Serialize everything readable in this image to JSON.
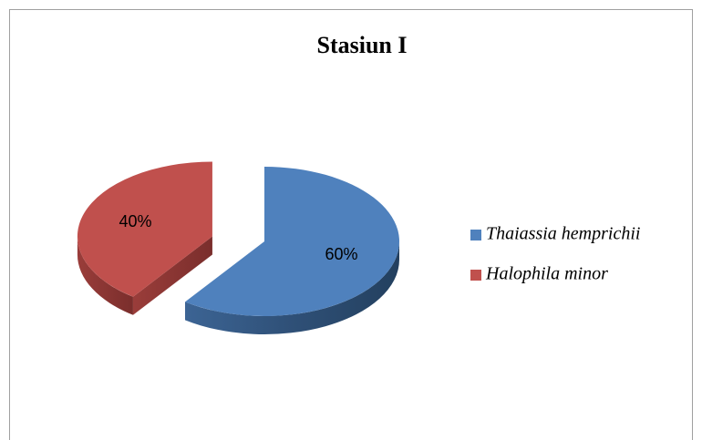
{
  "chart_data": {
    "type": "pie",
    "title": "Stasiun I",
    "categories": [
      "Thaiassia hemprichii",
      "Halophila minor"
    ],
    "values": [
      60,
      40
    ],
    "value_labels": [
      "60%",
      "40%"
    ],
    "colors": [
      "#4f81bd",
      "#c0504d"
    ],
    "legend": "right"
  }
}
